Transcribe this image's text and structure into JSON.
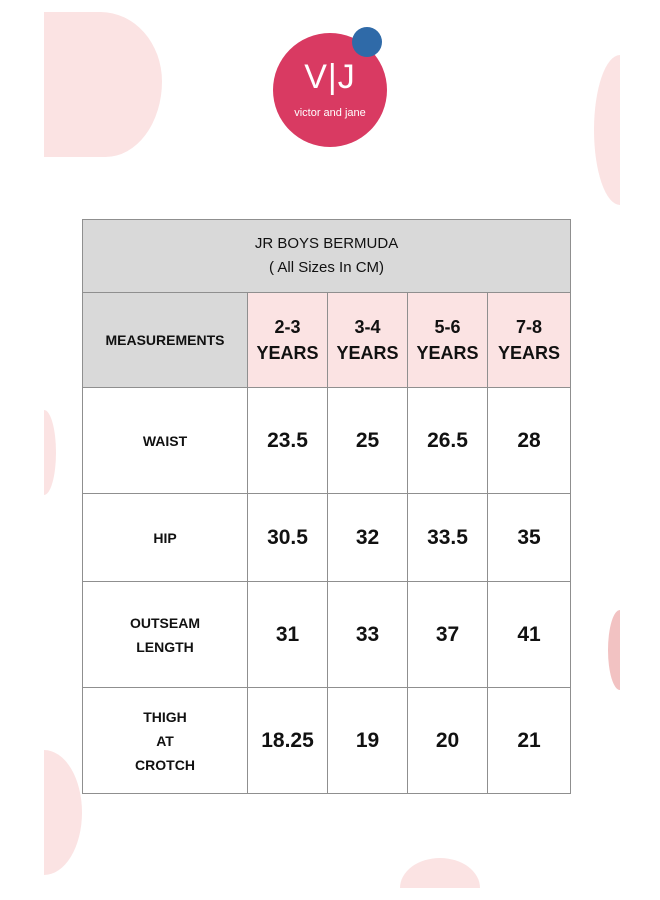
{
  "brand": {
    "mark": "V|J",
    "tagline": "victor and jane"
  },
  "table": {
    "title": "JR BOYS BERMUDA",
    "subtitle": "( All Sizes In CM)",
    "header_label": "MEASUREMENTS",
    "sizes": [
      {
        "line1": "2-3",
        "line2": "YEARS"
      },
      {
        "line1": "3-4",
        "line2": "YEARS"
      },
      {
        "line1": "5-6",
        "line2": "YEARS"
      },
      {
        "line1": "7-8",
        "line2": "YEARS"
      }
    ],
    "rows": [
      {
        "label_lines": [
          "WAIST"
        ],
        "values": [
          "23.5",
          "25",
          "26.5",
          "28"
        ]
      },
      {
        "label_lines": [
          "HIP"
        ],
        "values": [
          "30.5",
          "32",
          "33.5",
          "35"
        ]
      },
      {
        "label_lines": [
          "OUTSEAM",
          "LENGTH"
        ],
        "values": [
          "31",
          "33",
          "37",
          "41"
        ]
      },
      {
        "label_lines": [
          "THIGH",
          "AT",
          "CROTCH"
        ],
        "values": [
          "18.25",
          "19",
          "20",
          "21"
        ]
      }
    ]
  },
  "colors": {
    "logo": "#d93a62",
    "logo_dot": "#2f6aa8",
    "header_gray": "#d9d9d9",
    "size_pink": "#fbe3e3"
  }
}
